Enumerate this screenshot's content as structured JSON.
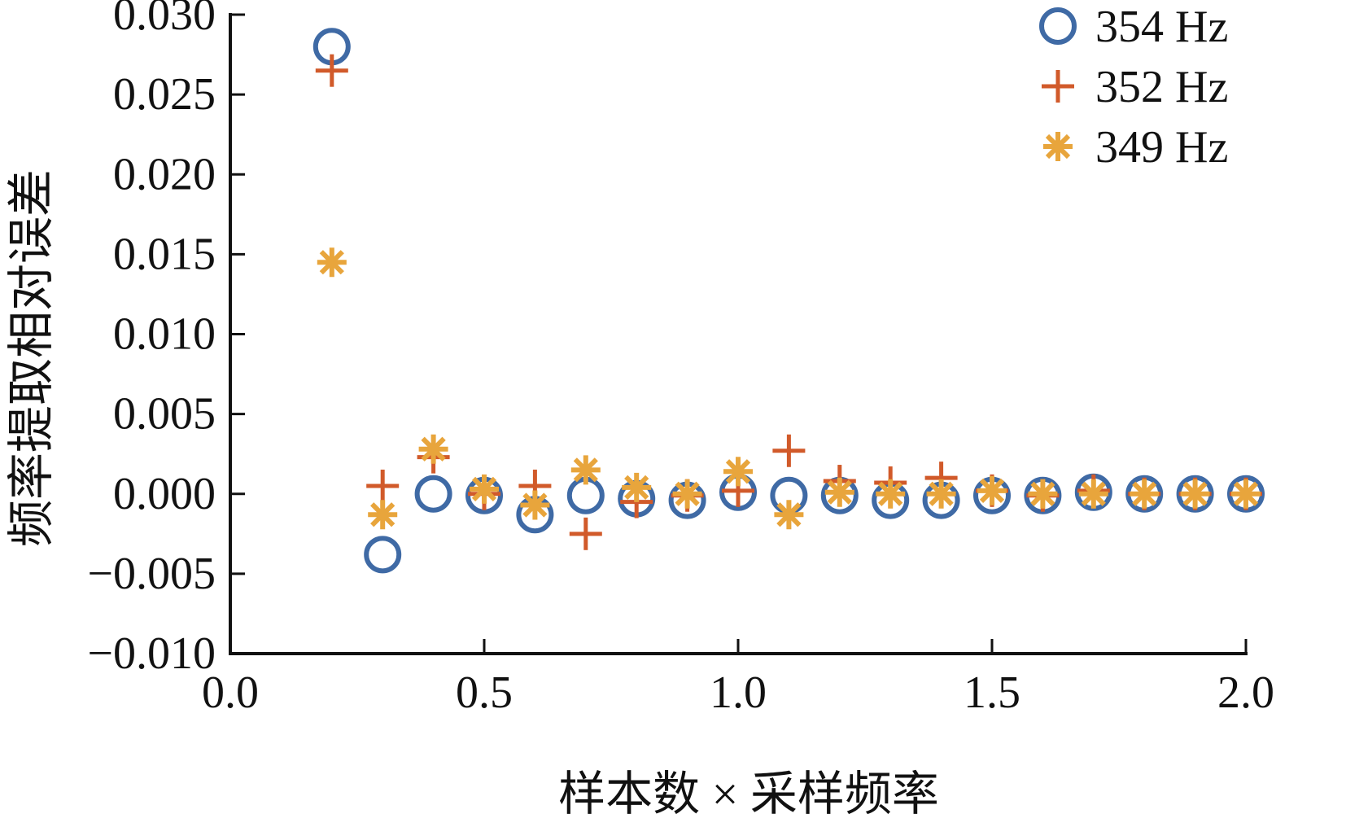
{
  "colors": {
    "series_354": "#3f6aa5",
    "series_352": "#d15a2a",
    "series_349": "#e8a53c",
    "axis": "#111111"
  },
  "chart_data": {
    "type": "scatter",
    "title": "",
    "xlabel": "样本数 × 采样频率",
    "ylabel": "频率提取相对误差",
    "xlim": [
      0.0,
      2.0
    ],
    "ylim": [
      -0.01,
      0.03
    ],
    "xticks": [
      "0.0",
      "0.5",
      "1.0",
      "1.5",
      "2.0"
    ],
    "xtick_values": [
      0.0,
      0.5,
      1.0,
      1.5,
      2.0
    ],
    "yticks": [
      "0.030",
      "0.025",
      "0.020",
      "0.015",
      "0.010",
      "0.005",
      "0.000",
      "−0.005",
      "−0.010"
    ],
    "ytick_values": [
      0.03,
      0.025,
      0.02,
      0.015,
      0.01,
      0.005,
      0.0,
      -0.005,
      -0.01
    ],
    "grid": false,
    "legend_position": "top-right",
    "x": [
      0.2,
      0.3,
      0.4,
      0.5,
      0.6,
      0.7,
      0.8,
      0.9,
      1.0,
      1.1,
      1.2,
      1.3,
      1.4,
      1.5,
      1.6,
      1.7,
      1.8,
      1.9,
      2.0
    ],
    "series": [
      {
        "name": "354 Hz",
        "marker": "circle",
        "color_key": "series_354",
        "values": [
          0.028,
          -0.0038,
          0.0,
          -0.0001,
          -0.0013,
          -0.0001,
          -0.0003,
          -0.0004,
          0.0001,
          -0.0001,
          -0.0001,
          -0.0004,
          -0.0004,
          -0.0001,
          -0.0001,
          0.0001,
          0.0,
          0.0,
          0.0
        ]
      },
      {
        "name": "352 Hz",
        "marker": "plus",
        "color_key": "series_352",
        "values": [
          0.0265,
          0.0005,
          0.0023,
          0.0,
          0.0005,
          -0.0025,
          -0.0005,
          -0.0001,
          0.0002,
          0.0027,
          0.0008,
          0.0007,
          0.001,
          0.0002,
          -0.0001,
          0.0002,
          0.0,
          0.0,
          0.0
        ]
      },
      {
        "name": "349 Hz",
        "marker": "asterisk",
        "color_key": "series_349",
        "values": [
          0.0145,
          -0.0013,
          0.0028,
          0.0003,
          -0.0007,
          0.0015,
          0.0004,
          0.0,
          0.0014,
          -0.0013,
          0.0001,
          0.0,
          0.0,
          0.0002,
          0.0,
          0.0,
          0.0,
          0.0,
          0.0
        ]
      }
    ]
  }
}
